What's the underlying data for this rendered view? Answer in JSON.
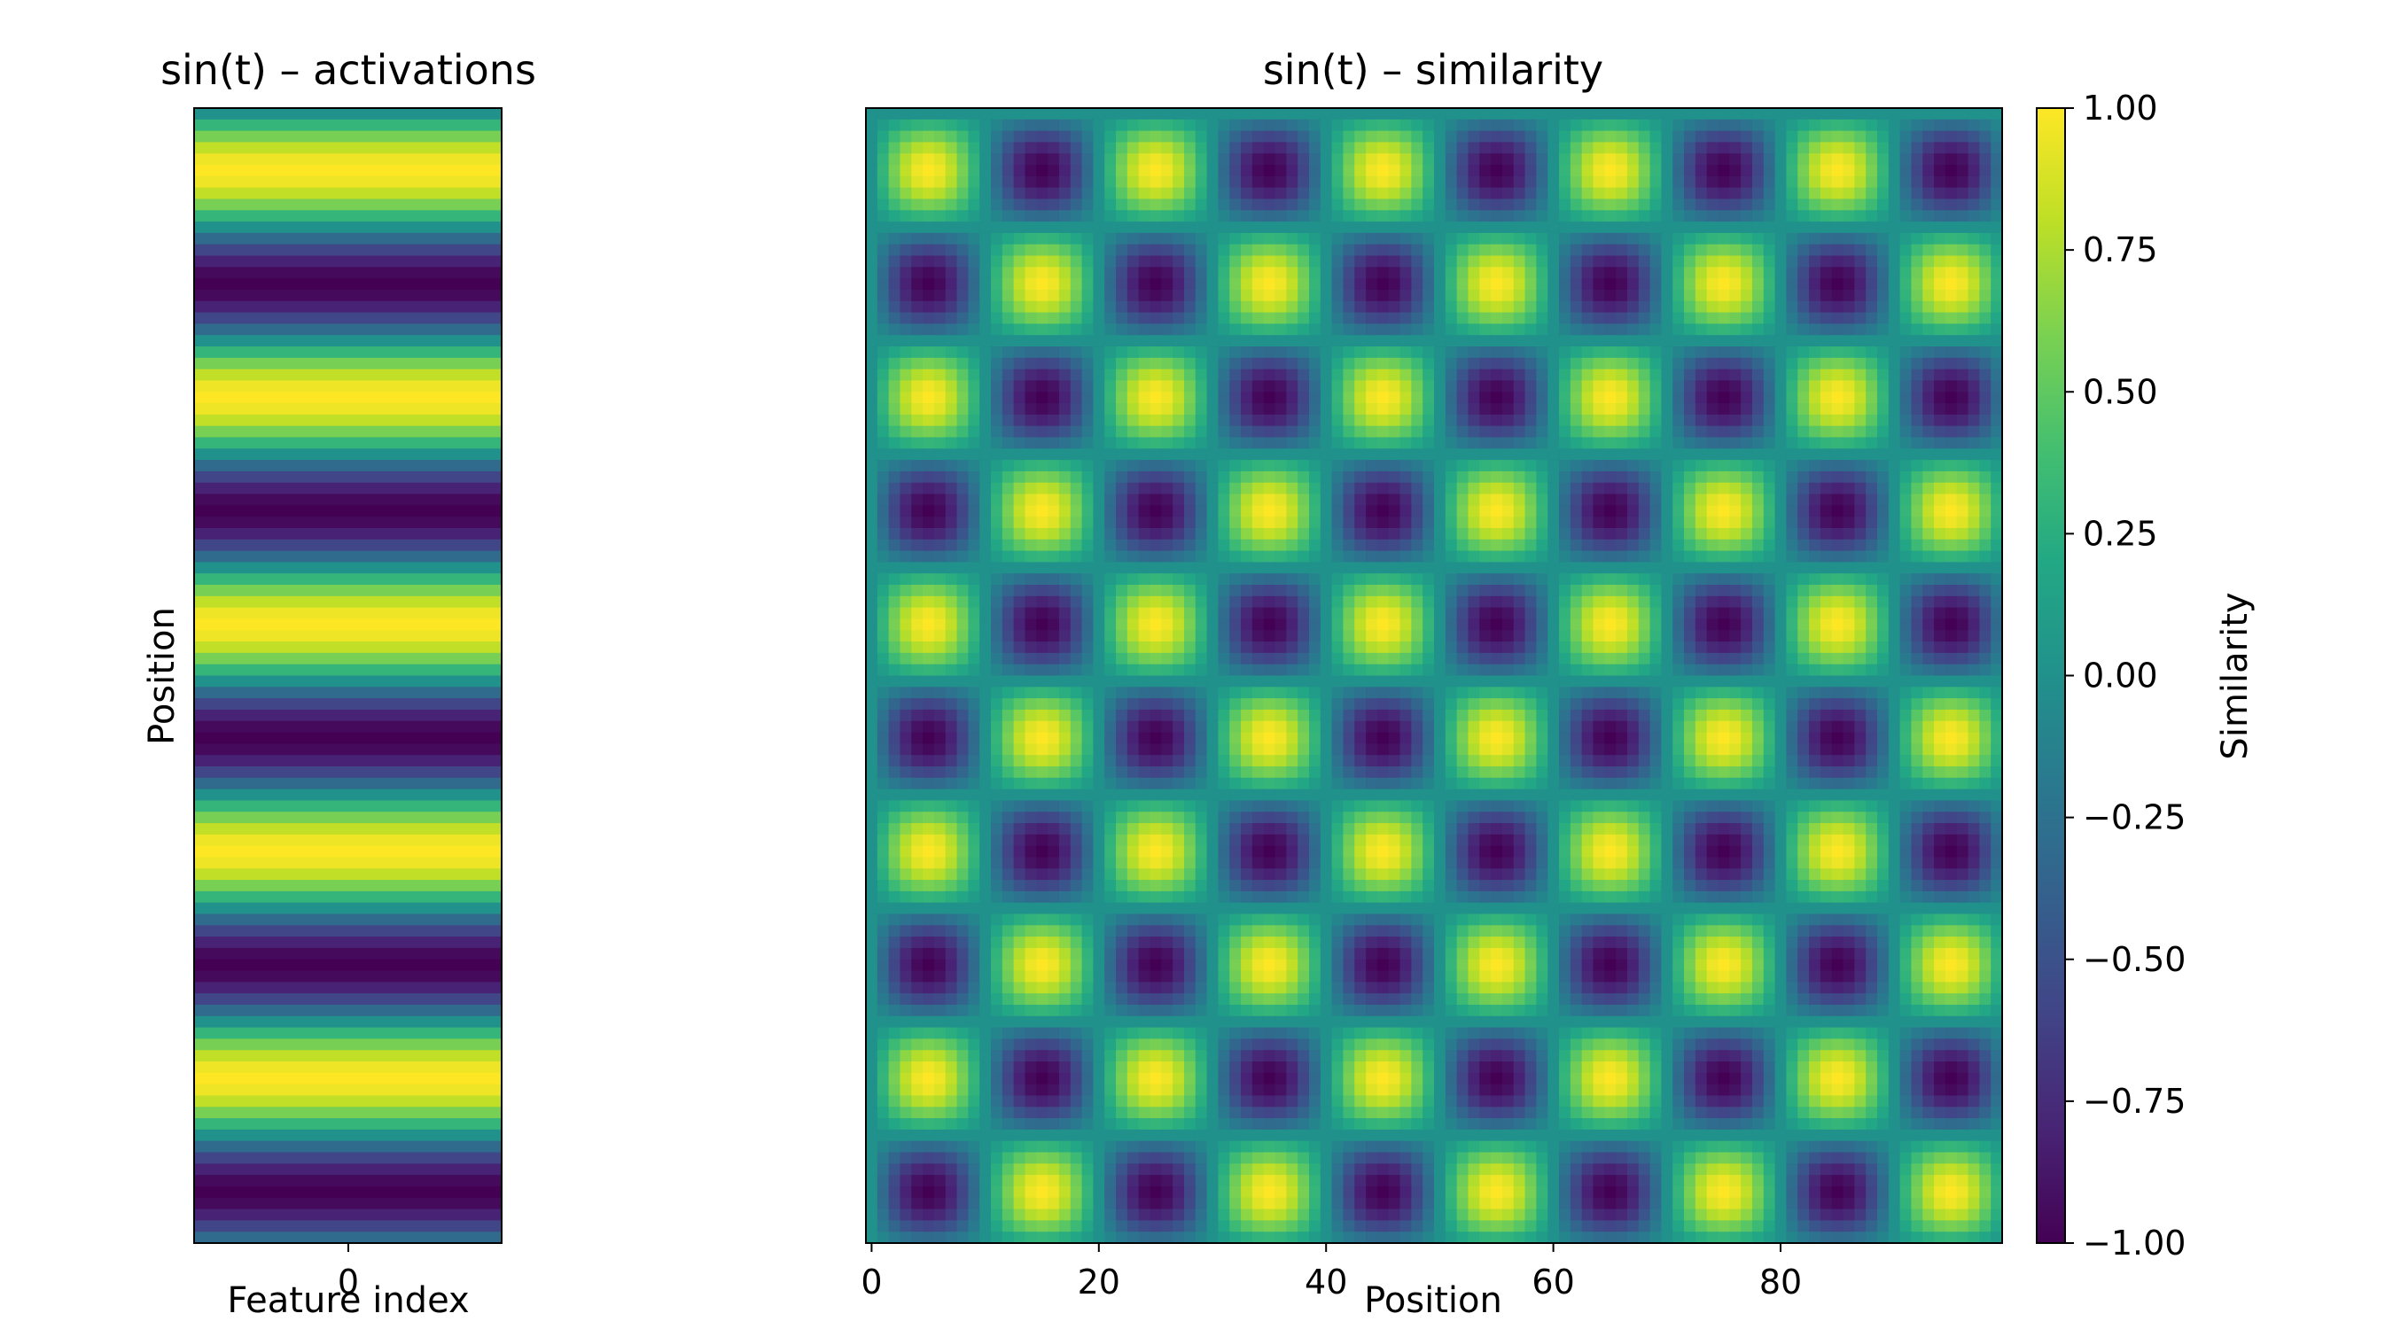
{
  "chart_data": [
    {
      "type": "heatmap",
      "title": "sin(t) – activations",
      "xlabel": "Feature index",
      "ylabel": "Position",
      "x_ticks": [
        0
      ],
      "x_tick_labels": [
        "0"
      ],
      "y_ticks": [],
      "n_rows": 100,
      "n_cols": 1,
      "values_formula": "sin(2π·i/20)",
      "rows_values": [
        0.0,
        0.309,
        0.588,
        0.809,
        0.951,
        1.0,
        0.951,
        0.809,
        0.588,
        0.309,
        0.0,
        -0.309,
        -0.588,
        -0.809,
        -0.951,
        -1.0,
        -0.951,
        -0.809,
        -0.588,
        -0.309
      ],
      "rows_period": 20,
      "colormap": "viridis",
      "vmin": -1,
      "vmax": 1
    },
    {
      "type": "heatmap",
      "title": "sin(t) – similarity",
      "xlabel": "Position",
      "ylabel": "",
      "x_ticks": [
        0,
        20,
        40,
        60,
        80
      ],
      "x_tick_labels": [
        "0",
        "20",
        "40",
        "60",
        "80"
      ],
      "xlim": [
        -0.5,
        99.5
      ],
      "ylim": [
        -0.5,
        99.5
      ],
      "n_rows": 100,
      "n_cols": 100,
      "values_formula": "sin(2π·i/20)·sin(2π·j/20)",
      "colormap": "viridis",
      "vmin": -1,
      "vmax": 1,
      "colorbar": {
        "label": "Similarity",
        "ticks": [
          1.0,
          0.75,
          0.5,
          0.25,
          0.0,
          -0.25,
          -0.5,
          -0.75,
          -1.0
        ],
        "tick_labels": [
          "1.00",
          "0.75",
          "0.50",
          "0.25",
          "0.00",
          "−0.25",
          "−0.50",
          "−0.75",
          "−1.00"
        ]
      }
    }
  ],
  "colors": {
    "viridis_low": "#440154",
    "viridis_mid": "#21918c",
    "viridis_high": "#fde725",
    "axes": "#000000"
  }
}
